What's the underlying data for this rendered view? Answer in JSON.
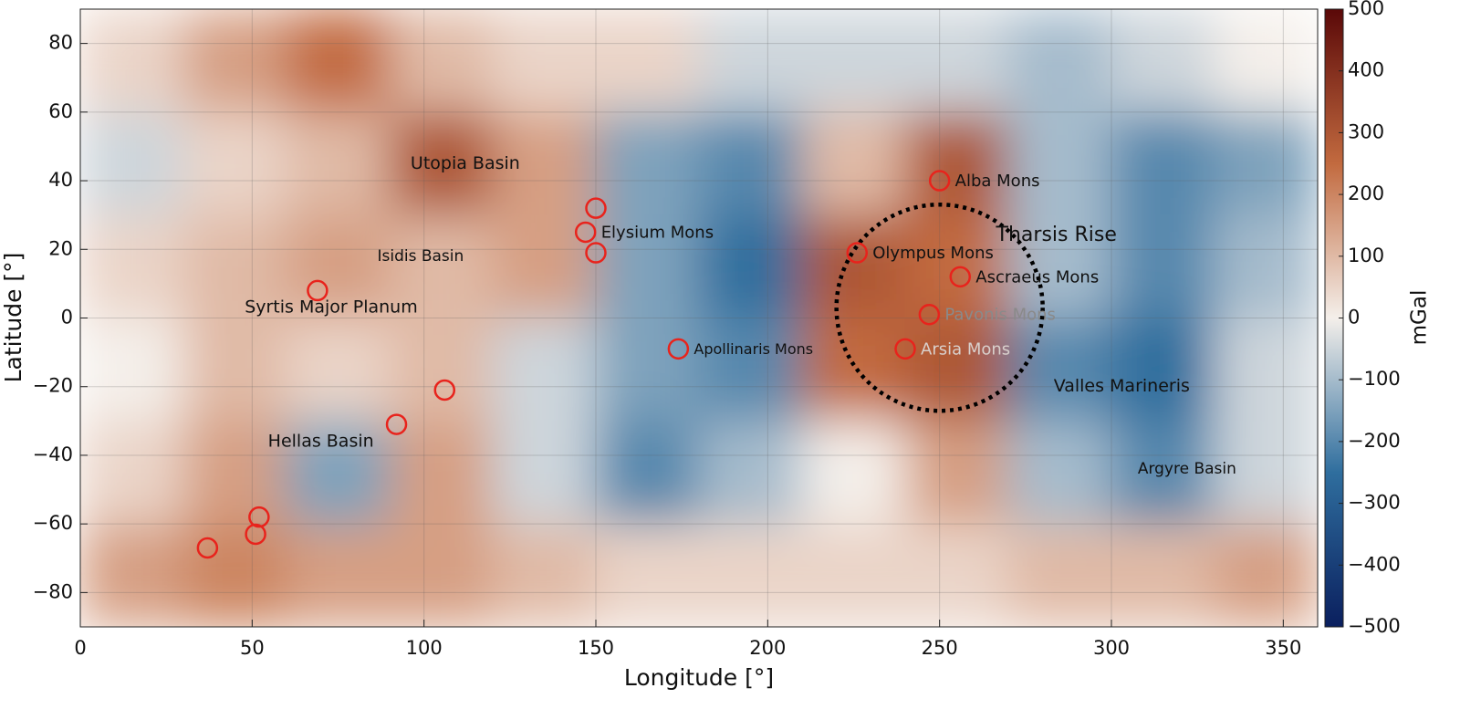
{
  "chart_data": {
    "type": "heatmap",
    "xlabel": "Longitude [°]",
    "ylabel": "Latitude [°]",
    "colorbar_label": "mGal",
    "xlim": [
      0,
      360
    ],
    "ylim": [
      -90,
      90
    ],
    "xticks": [
      0,
      50,
      100,
      150,
      200,
      250,
      300,
      350
    ],
    "yticks": [
      {
        "value": -80,
        "label": "−80"
      },
      {
        "value": -60,
        "label": "−60"
      },
      {
        "value": -40,
        "label": "−40"
      },
      {
        "value": -20,
        "label": "−20"
      },
      0,
      20,
      40,
      60,
      80
    ],
    "clim": [
      -500,
      500
    ],
    "cticks": [
      {
        "value": -500,
        "label": "−500"
      },
      {
        "value": -400,
        "label": "−400"
      },
      {
        "value": -300,
        "label": "−300"
      },
      {
        "value": -200,
        "label": "−200"
      },
      {
        "value": -100,
        "label": "−100"
      },
      0,
      100,
      200,
      300,
      400,
      500
    ],
    "colormap": [
      "#0a1f5e",
      "#2f6e9e",
      "#f4efea",
      "#c26a3f",
      "#5a0808"
    ],
    "grid": true,
    "field": {
      "lon": [
        15,
        45,
        75,
        105,
        135,
        165,
        195,
        225,
        255,
        285,
        315,
        345
      ],
      "lat": [
        75,
        45,
        15,
        -15,
        -45,
        -75
      ],
      "values": [
        [
          50,
          150,
          250,
          100,
          50,
          50,
          -50,
          -50,
          -50,
          -100,
          -50,
          0
        ],
        [
          -50,
          50,
          100,
          300,
          150,
          -150,
          -200,
          100,
          300,
          -100,
          -200,
          -150
        ],
        [
          50,
          100,
          150,
          100,
          150,
          -150,
          -250,
          300,
          250,
          -100,
          -200,
          -100
        ],
        [
          0,
          100,
          50,
          100,
          -50,
          -150,
          -200,
          250,
          300,
          -200,
          -250,
          -50
        ],
        [
          50,
          150,
          -150,
          150,
          -50,
          -200,
          -100,
          0,
          150,
          -100,
          -200,
          -50
        ],
        [
          150,
          200,
          150,
          150,
          100,
          50,
          50,
          50,
          50,
          100,
          100,
          150
        ]
      ]
    },
    "marker_color": "#e8231c",
    "markers": [
      {
        "name": "Alba Mons",
        "lon": 250,
        "lat": 40
      },
      {
        "name": "Olympus Mons",
        "lon": 226,
        "lat": 19
      },
      {
        "name": "Ascraeus Mons",
        "lon": 256,
        "lat": 12
      },
      {
        "name": "Pavonis Mons",
        "lon": 247,
        "lat": 1,
        "label_color": "#8a8a8a"
      },
      {
        "name": "Arsia Mons",
        "lon": 240,
        "lat": -9,
        "label_color": "#d9d0cc"
      },
      {
        "name": "Elysium Mons",
        "lon": 147,
        "lat": 25
      },
      {
        "lon": 150,
        "lat": 32
      },
      {
        "lon": 150,
        "lat": 19
      },
      {
        "name": "Apollinaris Mons",
        "lon": 174,
        "lat": -9
      },
      {
        "lon": 69,
        "lat": 8
      },
      {
        "lon": 106,
        "lat": -21
      },
      {
        "lon": 92,
        "lat": -31
      },
      {
        "lon": 52,
        "lat": -58
      },
      {
        "lon": 51,
        "lat": -63
      },
      {
        "lon": 37,
        "lat": -67
      }
    ],
    "regions": [
      {
        "name": "Utopia Basin",
        "lon": 112,
        "lat": 45
      },
      {
        "name": "Tharsis Rise",
        "lon": 284,
        "lat": 24
      },
      {
        "name": "Isidis Basin",
        "lon": 99,
        "lat": 18
      },
      {
        "name": "Syrtis Major Planum",
        "lon": 73,
        "lat": 3
      },
      {
        "name": "Hellas Basin",
        "lon": 70,
        "lat": -36
      },
      {
        "name": "Valles Marineris",
        "lon": 303,
        "lat": -20
      },
      {
        "name": "Argyre Basin",
        "lon": 322,
        "lat": -44
      }
    ],
    "tharsis_circle": {
      "lon": 250,
      "lat": 3,
      "radius": 30
    }
  }
}
